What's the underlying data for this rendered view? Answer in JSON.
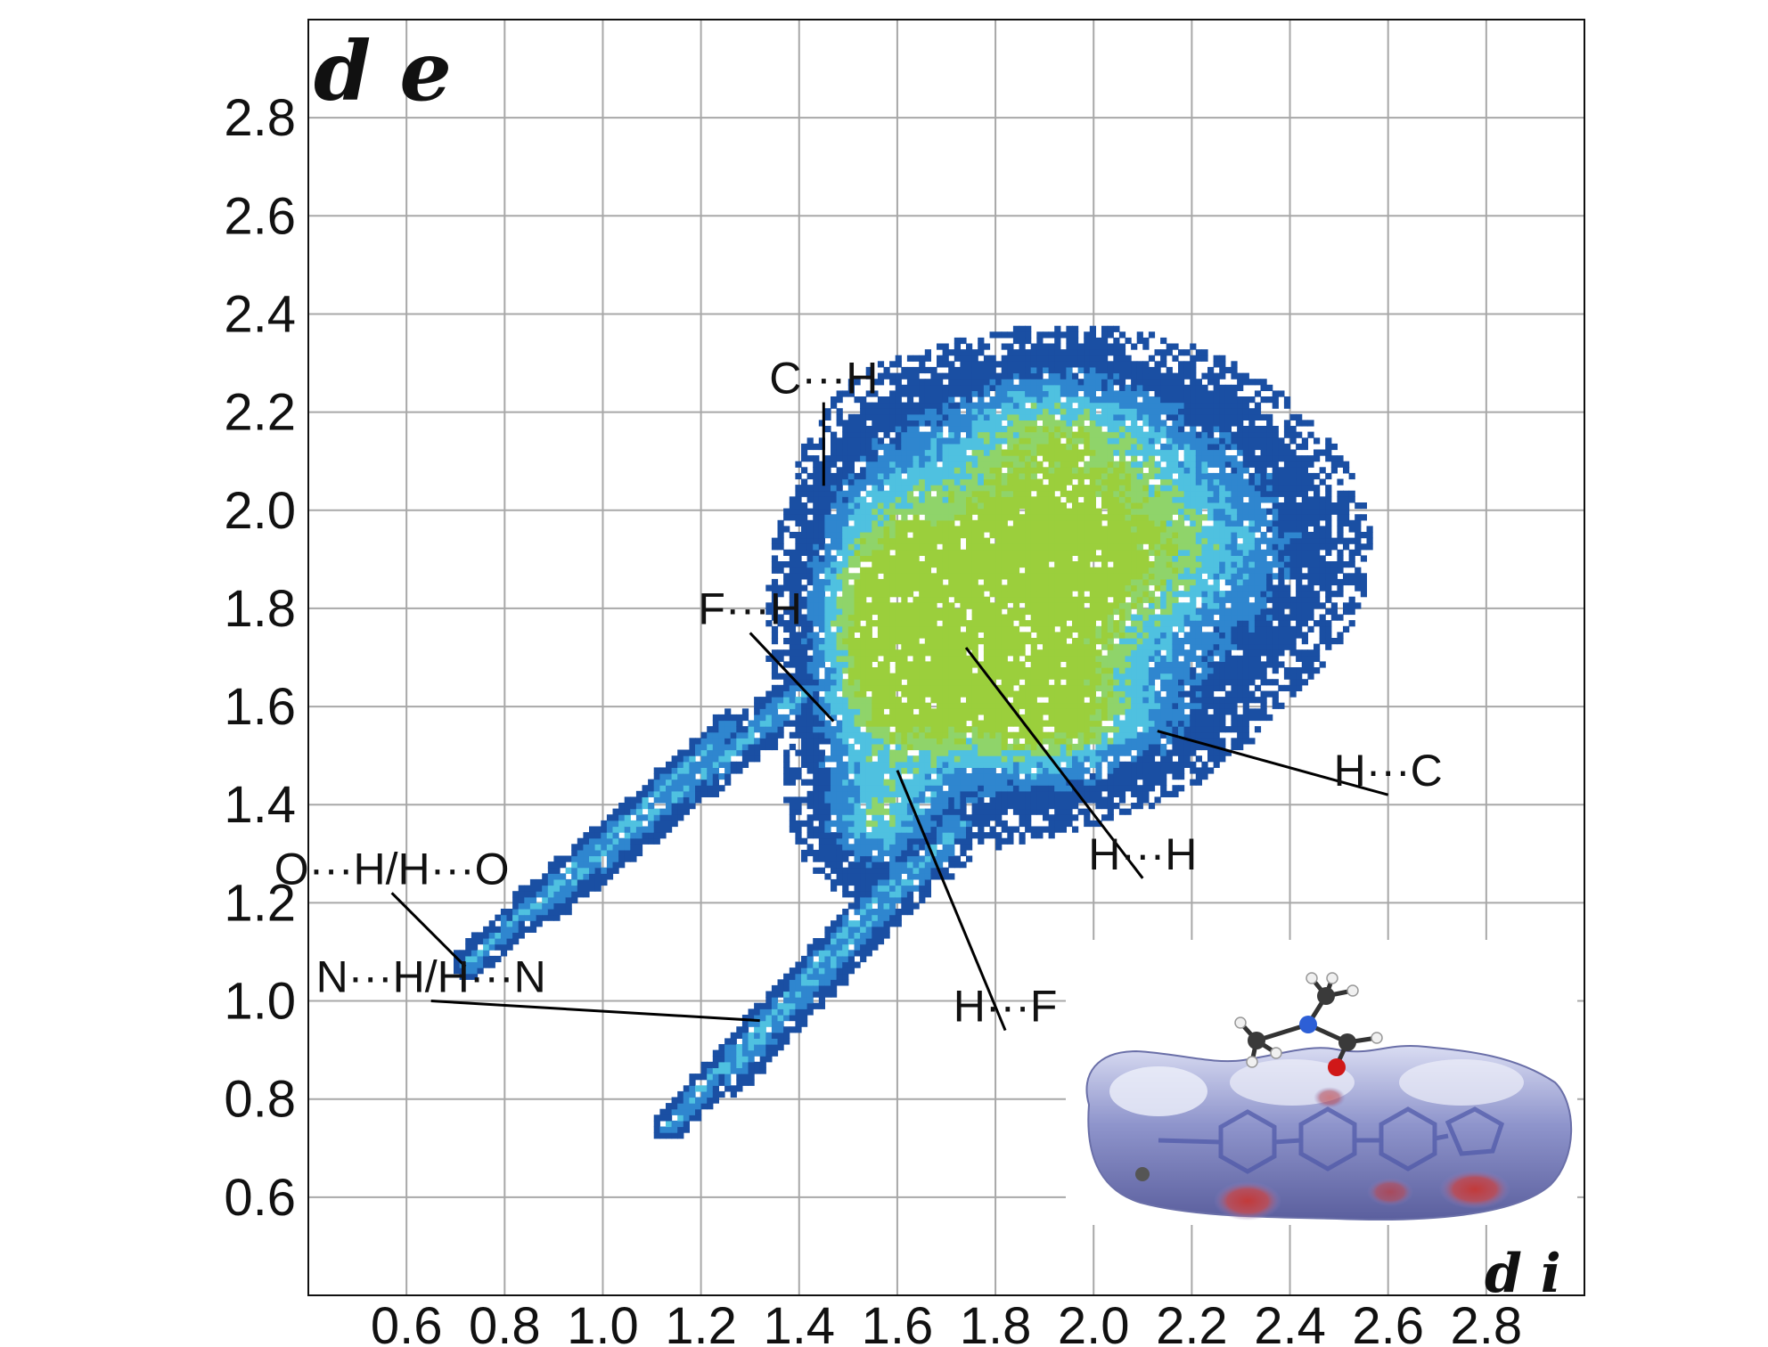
{
  "chart_data": {
    "type": "heatmap",
    "title": "",
    "xlabel": "",
    "ylabel": "",
    "corner_labels": {
      "top_left": "d e",
      "bottom_right": "d i"
    },
    "xlim": [
      0.4,
      3.0
    ],
    "ylim": [
      0.4,
      3.0
    ],
    "x_ticks": [
      "0.6",
      "0.8",
      "1.0",
      "1.2",
      "1.4",
      "1.6",
      "1.8",
      "2.0",
      "2.2",
      "2.4",
      "2.6",
      "2.8"
    ],
    "y_ticks": [
      "2.8",
      "2.6",
      "2.4",
      "2.2",
      "2.0",
      "1.8",
      "1.6",
      "1.4",
      "1.2",
      "1.0",
      "0.8",
      "0.6"
    ],
    "grid": true,
    "color_scale": [
      "#1a4fa3",
      "#2f86cf",
      "#4fc1e0",
      "#8fd46a",
      "#9bcf3c"
    ],
    "annotations": [
      {
        "text": "C···H",
        "label_at": [
          1.45,
          2.22
        ],
        "points_to": [
          1.45,
          2.05
        ]
      },
      {
        "text": "F···H",
        "label_at": [
          1.3,
          1.75
        ],
        "points_to": [
          1.47,
          1.57
        ]
      },
      {
        "text": "H···C",
        "label_at": [
          2.6,
          1.42
        ],
        "points_to": [
          2.13,
          1.55
        ]
      },
      {
        "text": "H···H",
        "label_at": [
          2.1,
          1.25
        ],
        "points_to": [
          1.74,
          1.72
        ]
      },
      {
        "text": "O···H/H···O",
        "label_at": [
          0.57,
          1.22
        ],
        "points_to": [
          0.72,
          1.07
        ]
      },
      {
        "text": "N···H/H···N",
        "label_at": [
          0.65,
          1.0
        ],
        "points_to": [
          1.32,
          0.96
        ]
      },
      {
        "text": "H···F",
        "label_at": [
          1.82,
          0.94
        ],
        "points_to": [
          1.6,
          1.47
        ]
      }
    ],
    "inset": "Hirshfeld surface of the molecule with an adjacent dimethylformamide molecule"
  }
}
